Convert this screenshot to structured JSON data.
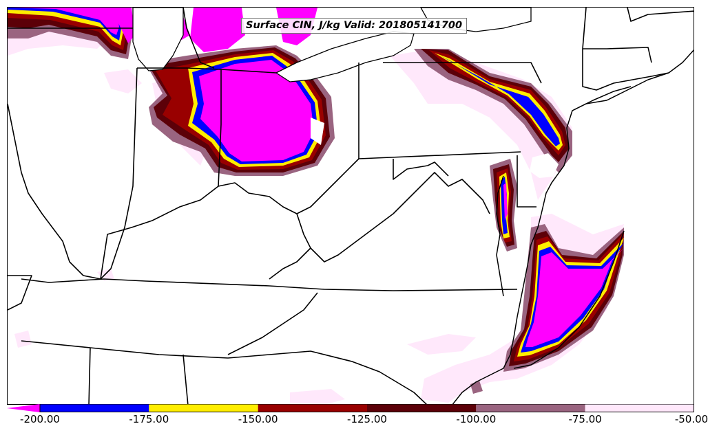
{
  "title": "Surface CIN, J/kg Valid: 201805141700",
  "colorbar": {
    "levels": [
      -200,
      -175,
      -150,
      -125,
      -100,
      -75,
      -50
    ],
    "tick_labels": [
      "-200.00",
      "-175.00",
      "-150.00",
      "-125.00",
      "-100.00",
      "-75.00",
      "-50.00"
    ],
    "colors": [
      "#0000ff",
      "#ffee00",
      "#990000",
      "#5c0008",
      "#9a6480",
      "#ffe8fb"
    ],
    "under_color": "#ff00ff"
  },
  "palette": {
    "magenta": "#ff00ff",
    "blue": "#0000ff",
    "yellow": "#ffee00",
    "red": "#990000",
    "darkred": "#5c0008",
    "mauve": "#9a6480",
    "pink": "#ffe8fb",
    "boundary": "#000000"
  }
}
